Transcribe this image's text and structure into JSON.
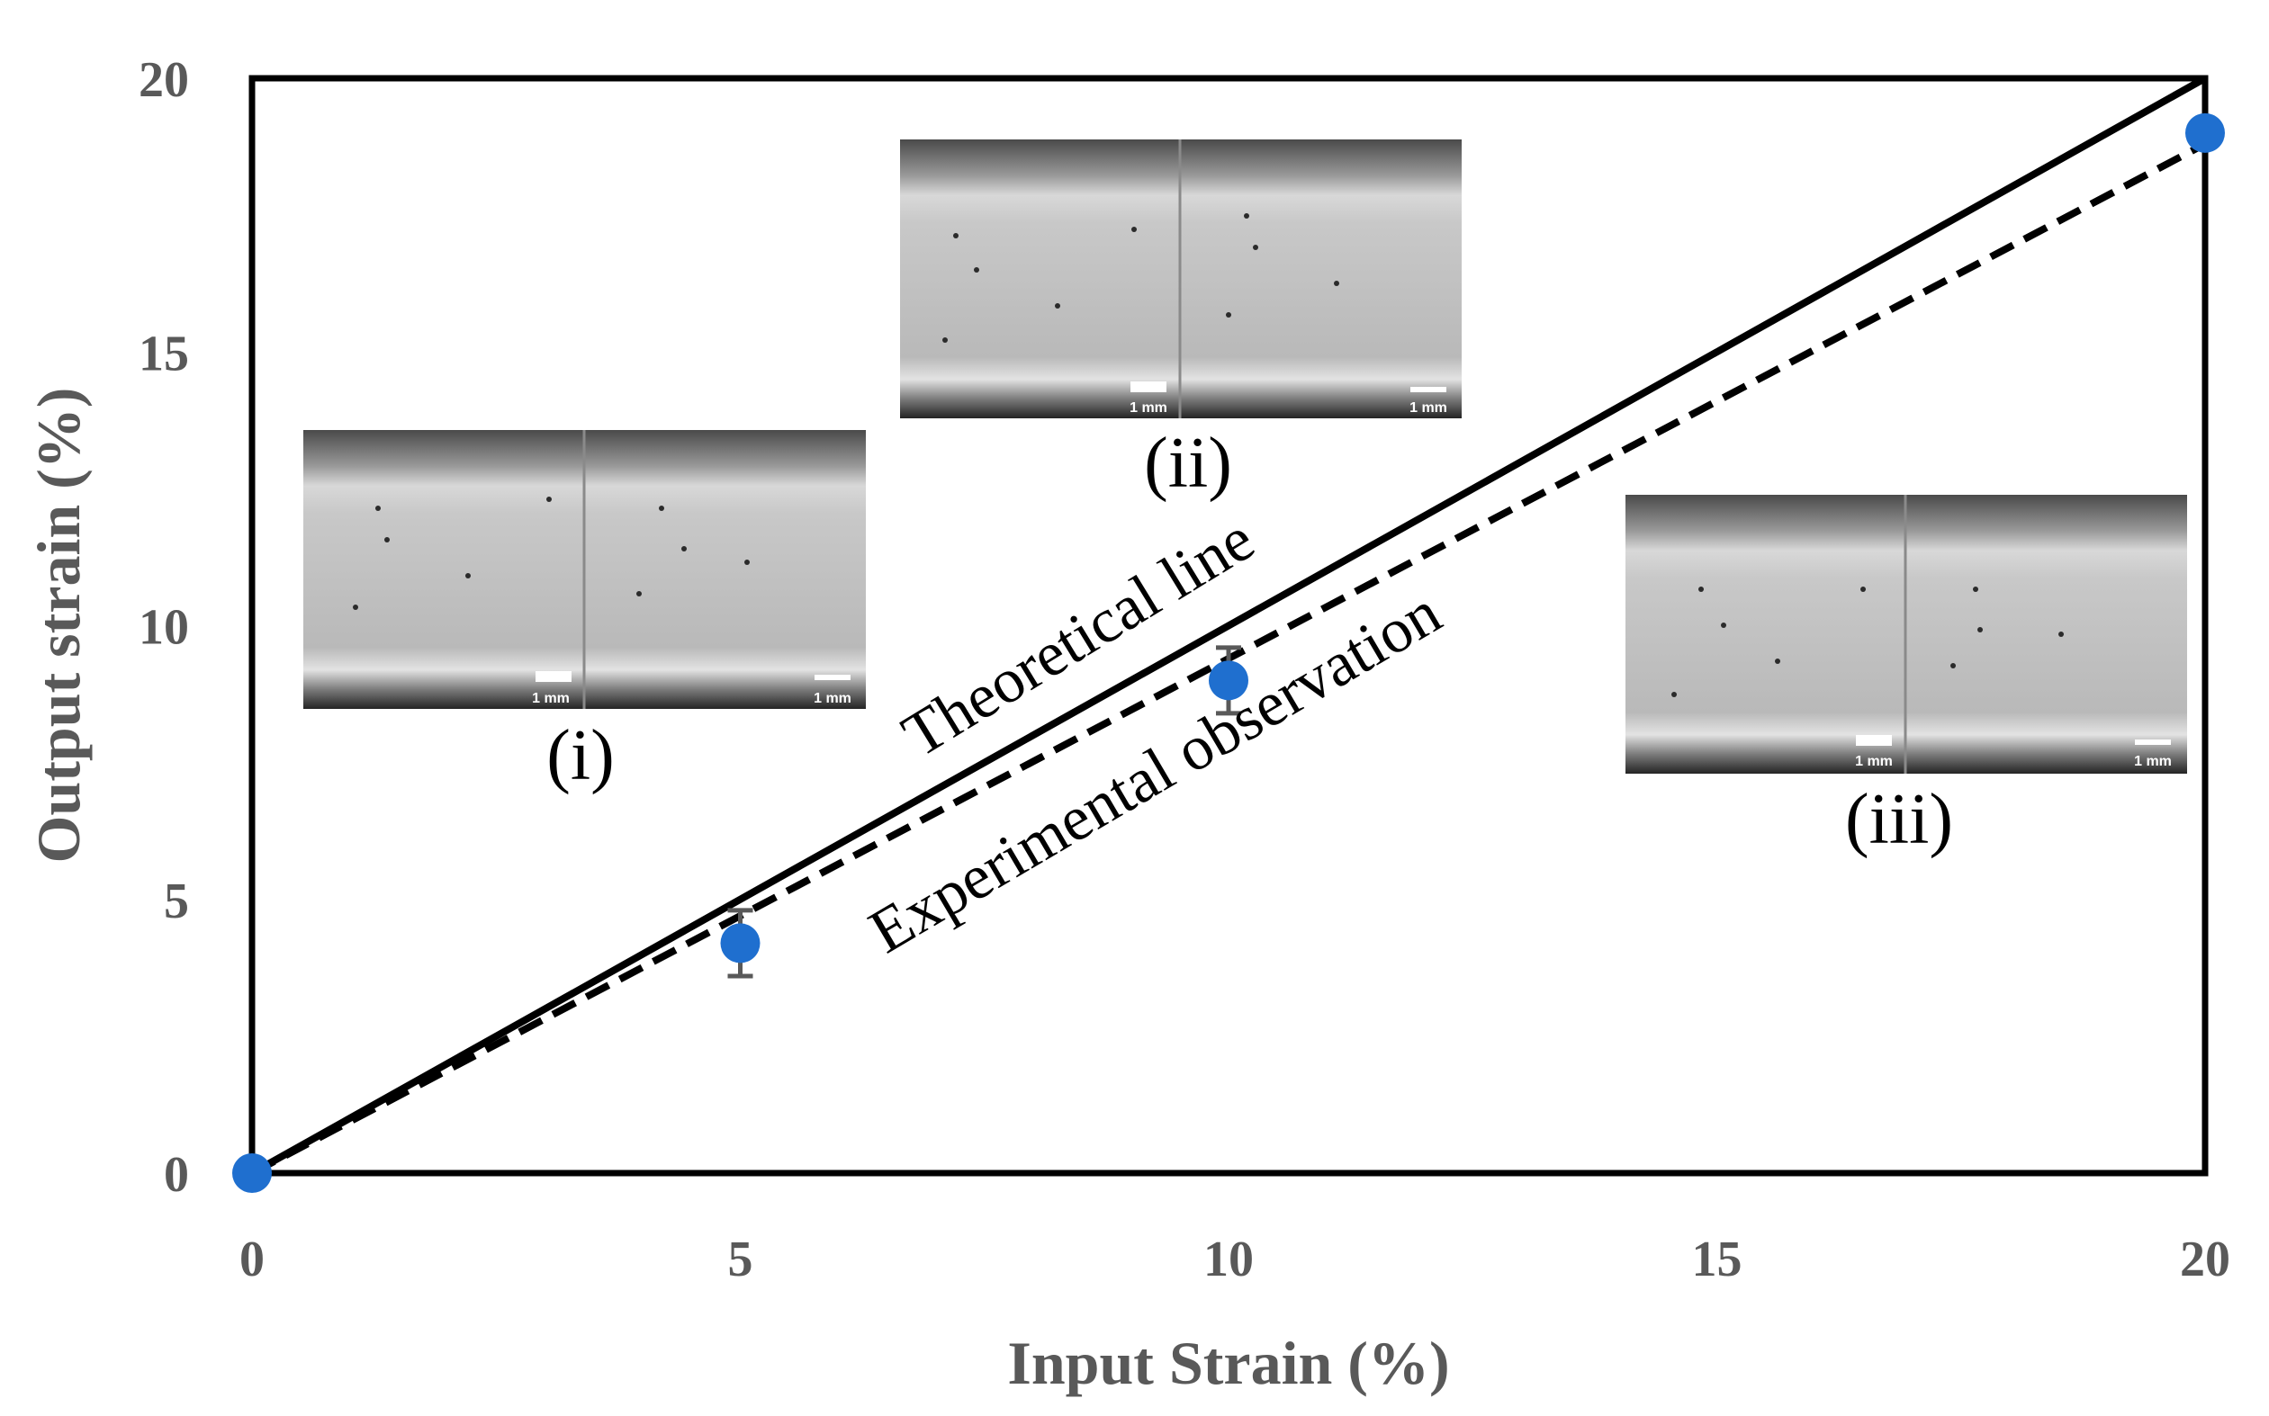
{
  "chart_data": {
    "type": "scatter",
    "xlabel": "Input Strain (%)",
    "ylabel": "Output strain (%)",
    "xlim": [
      0,
      20
    ],
    "ylim": [
      0,
      20
    ],
    "x_ticks": [
      "0",
      "5",
      "10",
      "15",
      "20"
    ],
    "y_ticks": [
      "0",
      "5",
      "10",
      "15",
      "20"
    ],
    "grid": false,
    "series": [
      {
        "style": "markers",
        "color": "#1f6fcf",
        "points": [
          {
            "x": 0,
            "y": 0,
            "err": 0
          },
          {
            "x": 5,
            "y": 4.2,
            "err": 0.6
          },
          {
            "x": 10,
            "y": 9.0,
            "err": 0.6
          },
          {
            "x": 20,
            "y": 19.0,
            "err": 0
          }
        ]
      },
      {
        "name": "Theoretical line",
        "style": "solid",
        "color": "#000000",
        "x": [
          0,
          20
        ],
        "y": [
          0,
          20
        ]
      },
      {
        "name": "Experimental observation",
        "style": "dashed",
        "color": "#000000",
        "x": [
          0,
          20
        ],
        "y": [
          0,
          18.8
        ]
      }
    ],
    "annotations": {
      "theoretical": "Theoretical line",
      "experimental": "Experimental observation"
    },
    "insets": [
      {
        "label": "(i)",
        "scale_bar_text": "1 mm"
      },
      {
        "label": "(ii)",
        "scale_bar_text": "1 mm"
      },
      {
        "label": "(iii)",
        "scale_bar_text": "1 mm"
      }
    ]
  }
}
